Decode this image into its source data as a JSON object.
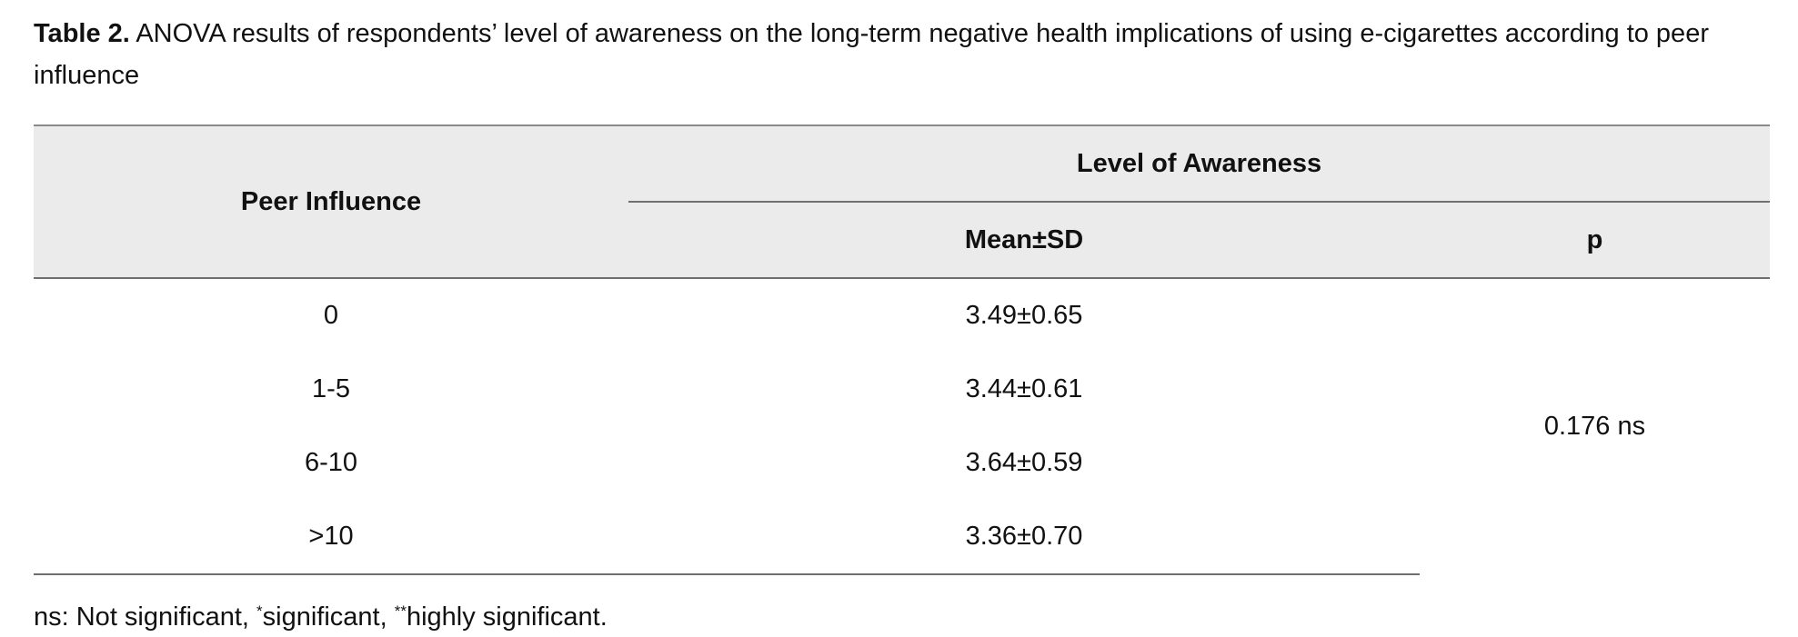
{
  "caption": {
    "label": "Table 2.",
    "text": "ANOVA results of respondents’ level of awareness on the long-term negative health implications of using e-cigarettes according to peer influence"
  },
  "table": {
    "row_header": "Peer Influence",
    "group_header": "Level of Awareness",
    "col_mean": "Mean±SD",
    "col_p": "p",
    "rows": [
      {
        "peer": "0",
        "mean_sd": "3.49±0.65"
      },
      {
        "peer": "1-5",
        "mean_sd": "3.44±0.61"
      },
      {
        "peer": "6-10",
        "mean_sd": "3.64±0.59"
      },
      {
        "peer": ">10",
        "mean_sd": "3.36±0.70"
      }
    ],
    "p_value": "0.176 ns"
  },
  "footnote": {
    "ns": "ns: Not significant, ",
    "sig_mark": "*",
    "sig": "significant, ",
    "high_mark": "**",
    "high": "highly significant."
  }
}
